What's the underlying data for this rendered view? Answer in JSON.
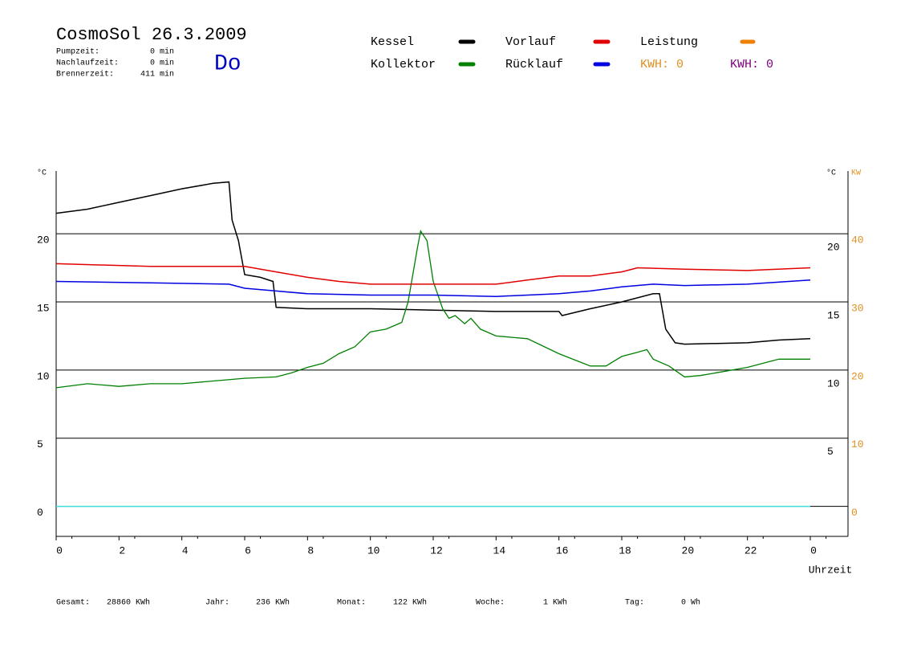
{
  "header": {
    "title": "CosmoSol 26.3.2009",
    "day": "Do",
    "stats": [
      {
        "label": "Pumpzeit:",
        "value": "0 min"
      },
      {
        "label": "Nachlaufzeit:",
        "value": "0 min"
      },
      {
        "label": "Brennerzeit:",
        "value": "411 min"
      }
    ]
  },
  "chart_data": {
    "type": "line",
    "y_label": "°C",
    "y_right_label": "°C",
    "y2_label": "KW",
    "x_label": "Uhrzeit",
    "xlim": [
      0,
      25.2
    ],
    "xticks": [
      0,
      2,
      4,
      6,
      8,
      10,
      12,
      14,
      16,
      18,
      20,
      22,
      {
        "value": 24,
        "label": "0"
      }
    ],
    "ylim": [
      -2.2,
      24.6
    ],
    "yticks": [
      0,
      5,
      10,
      15,
      20
    ],
    "y_right_ticks": [
      5,
      10,
      15,
      20
    ],
    "y2lim": [
      -4.4,
      49.2
    ],
    "y2ticks": [
      0,
      10,
      20,
      30,
      40
    ],
    "y2_color": "#e09020",
    "grid": true,
    "series": [
      {
        "name": "Kessel",
        "color": "#000000",
        "x": [
          0,
          1,
          2,
          3,
          4,
          5,
          5.5,
          5.6,
          5.8,
          6,
          6.5,
          6.9,
          7,
          8,
          10,
          12,
          14,
          16,
          16.1,
          17,
          18,
          19,
          19.2,
          19.4,
          19.7,
          20,
          22,
          23,
          24
        ],
        "values": [
          21.5,
          21.8,
          22.3,
          22.8,
          23.3,
          23.7,
          23.8,
          21,
          19.5,
          17.0,
          16.8,
          16.5,
          14.6,
          14.5,
          14.5,
          14.4,
          14.3,
          14.3,
          14.0,
          14.5,
          15.0,
          15.6,
          15.6,
          13,
          12.0,
          11.9,
          12.0,
          12.2,
          12.3
        ]
      },
      {
        "name": "Kollektor",
        "color": "#008000",
        "x": [
          0,
          1,
          2,
          3,
          4,
          5,
          6,
          7,
          7.5,
          8,
          8.5,
          9,
          9.5,
          10,
          10.5,
          11,
          11.2,
          11.5,
          11.6,
          11.8,
          12,
          12.3,
          12.5,
          12.7,
          13,
          13.2,
          13.5,
          14,
          15,
          16,
          17,
          17.5,
          18,
          18.5,
          18.8,
          19,
          19.5,
          20,
          20.5,
          21,
          22,
          23,
          24
        ],
        "values": [
          8.7,
          9.0,
          8.8,
          9.0,
          9.0,
          9.2,
          9.4,
          9.5,
          9.8,
          10.2,
          10.5,
          11.2,
          11.7,
          12.8,
          13.0,
          13.5,
          15.0,
          19.0,
          20.2,
          19.5,
          16.5,
          14.5,
          13.8,
          14.0,
          13.4,
          13.8,
          13.0,
          12.5,
          12.3,
          11.2,
          10.3,
          10.3,
          11.0,
          11.3,
          11.5,
          10.8,
          10.3,
          9.5,
          9.6,
          9.8,
          10.2,
          10.8,
          10.8
        ]
      },
      {
        "name": "Vorlauf",
        "color": "#e00000",
        "x": [
          0,
          3,
          6,
          7,
          8,
          9,
          10,
          12,
          14,
          15,
          16,
          17,
          18,
          18.5,
          20,
          22,
          24
        ],
        "values": [
          17.8,
          17.6,
          17.6,
          17.2,
          16.8,
          16.5,
          16.3,
          16.3,
          16.3,
          16.6,
          16.9,
          16.9,
          17.2,
          17.5,
          17.4,
          17.3,
          17.5
        ]
      },
      {
        "name": "Rücklauf",
        "color": "#0000e0",
        "x": [
          0,
          3,
          5.5,
          6,
          7,
          8,
          10,
          12,
          14,
          16,
          17,
          18,
          19,
          20,
          22,
          24
        ],
        "values": [
          16.5,
          16.4,
          16.3,
          16.0,
          15.8,
          15.6,
          15.5,
          15.5,
          15.4,
          15.6,
          15.8,
          16.1,
          16.3,
          16.2,
          16.3,
          16.6
        ]
      }
    ],
    "power_legend": {
      "name": "Leistung",
      "color": "#f08000"
    },
    "kwh_labels": [
      {
        "text": "KWH: 0",
        "color": "#e09020"
      },
      {
        "text": "KWH: 0",
        "color": "#800080"
      }
    ]
  },
  "footer": [
    {
      "label": "Gesamt:",
      "value": "28860 KWh"
    },
    {
      "label": "Jahr:",
      "value": "236 KWh"
    },
    {
      "label": "Monat:",
      "value": "122 KWh"
    },
    {
      "label": "Woche:",
      "value": "1 KWh"
    },
    {
      "label": "Tag:",
      "value": "0 Wh"
    }
  ]
}
